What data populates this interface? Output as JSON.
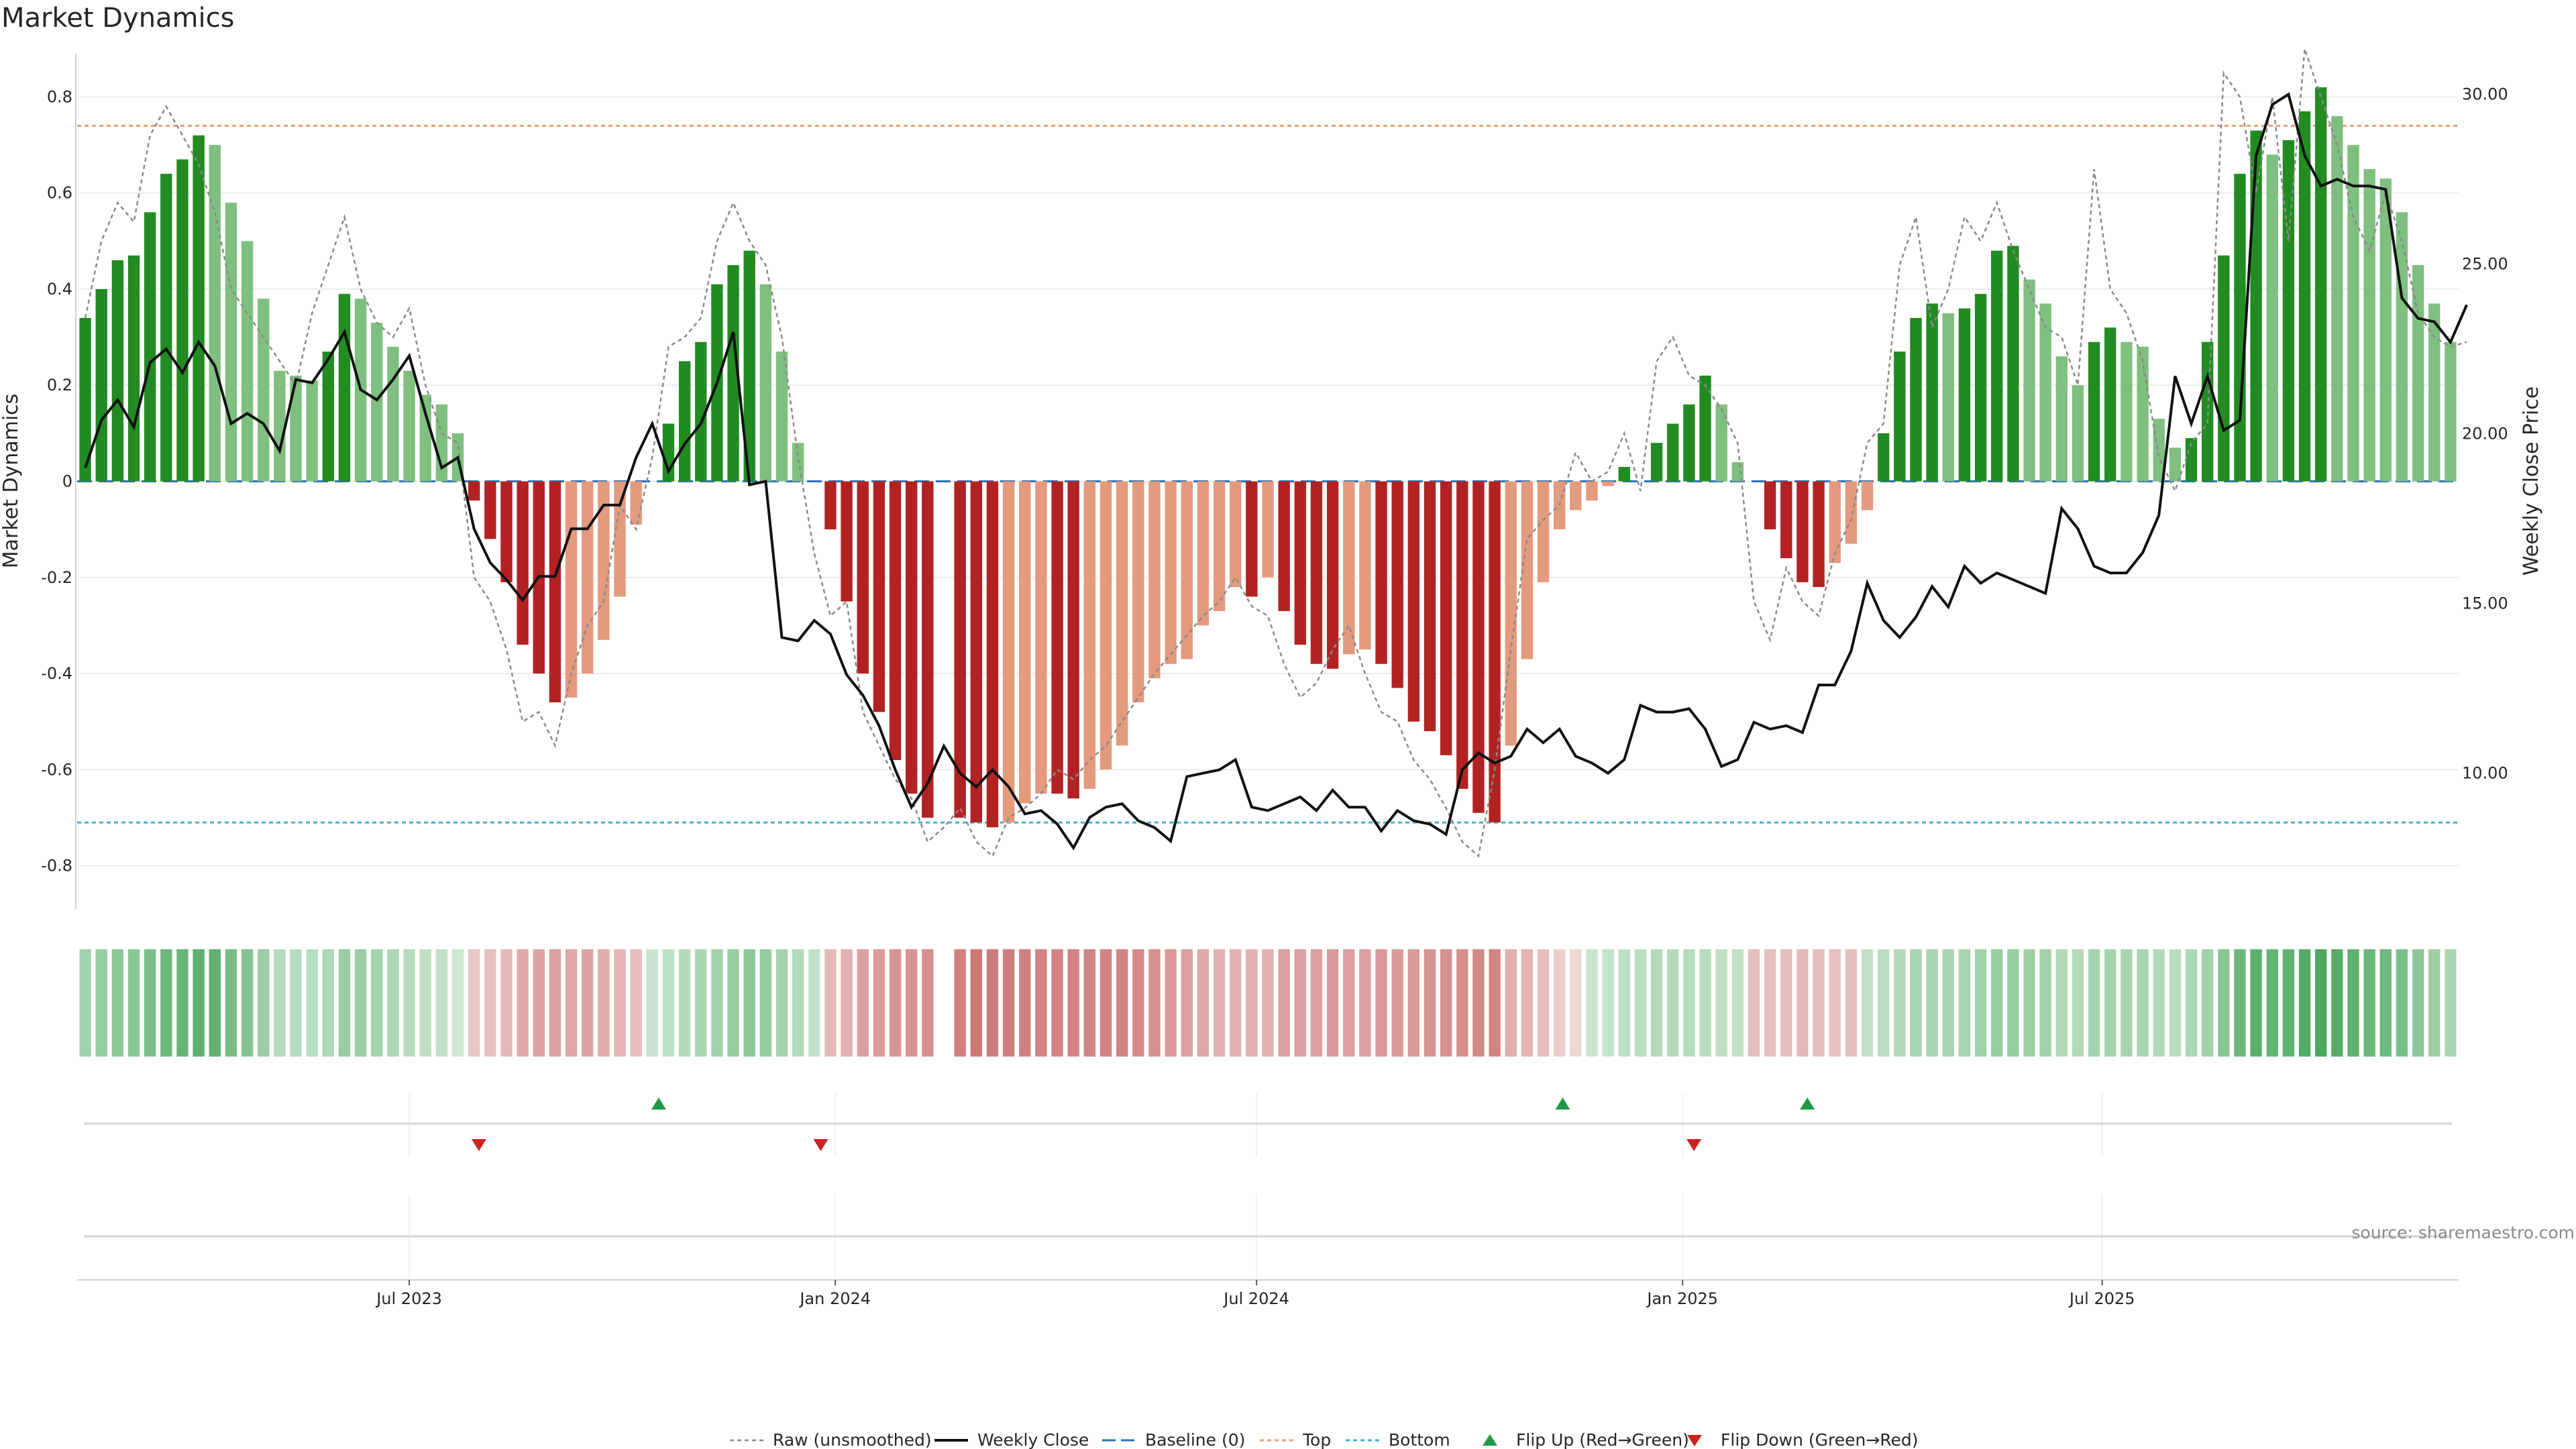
{
  "chart_data": {
    "type": "bar",
    "title": "Market Dynamics",
    "ylabel": "Market Dynamics",
    "y2label": "Weekly Close Price",
    "ylim": [
      -0.89,
      0.89
    ],
    "y2lim": [
      6.0,
      31.2
    ],
    "yticks": [
      {
        "v": 0.8,
        "label": "0.8"
      },
      {
        "v": 0.6,
        "label": "0.6"
      },
      {
        "v": 0.4,
        "label": "0.4"
      },
      {
        "v": 0.2,
        "label": "0.2"
      },
      {
        "v": 0,
        "label": "0"
      },
      {
        "v": -0.2,
        "label": "-0.2"
      },
      {
        "v": -0.4,
        "label": "-0.4"
      },
      {
        "v": -0.6,
        "label": "-0.6"
      },
      {
        "v": -0.8,
        "label": "-0.8"
      }
    ],
    "y2ticks": [
      {
        "v": 30,
        "label": "30.00"
      },
      {
        "v": 25,
        "label": "25.00"
      },
      {
        "v": 20,
        "label": "20.00"
      },
      {
        "v": 15,
        "label": "15.00"
      },
      {
        "v": 10,
        "label": "10.00"
      }
    ],
    "xticks": [
      {
        "week": 20,
        "label": "Jul 2023"
      },
      {
        "week": 46.3,
        "label": "Jan 2024"
      },
      {
        "week": 72.3,
        "label": "Jul 2024"
      },
      {
        "week": 98.6,
        "label": "Jan 2025"
      },
      {
        "week": 124.5,
        "label": "Jul 2025"
      }
    ],
    "top_level": 0.74,
    "bottom_level": -0.71,
    "baseline": 0,
    "smoothed": [
      0.34,
      0.4,
      0.46,
      0.47,
      0.56,
      0.64,
      0.67,
      0.72,
      0.7,
      0.58,
      0.5,
      0.38,
      0.23,
      0.22,
      0.21,
      0.27,
      0.39,
      0.38,
      0.33,
      0.28,
      0.23,
      0.18,
      0.16,
      0.1,
      -0.04,
      -0.12,
      -0.21,
      -0.34,
      -0.4,
      -0.46,
      -0.45,
      -0.4,
      -0.33,
      -0.24,
      -0.09,
      0,
      0.12,
      0.25,
      0.29,
      0.41,
      0.45,
      0.48,
      0.41,
      0.27,
      0.08,
      0,
      -0.1,
      -0.25,
      -0.4,
      -0.48,
      -0.58,
      -0.65,
      -0.7,
      0,
      -0.7,
      -0.71,
      -0.72,
      -0.71,
      -0.67,
      -0.65,
      -0.65,
      -0.66,
      -0.64,
      -0.6,
      -0.55,
      -0.46,
      -0.41,
      -0.38,
      -0.37,
      -0.3,
      -0.27,
      -0.22,
      -0.24,
      -0.2,
      -0.27,
      -0.34,
      -0.38,
      -0.39,
      -0.36,
      -0.35,
      -0.38,
      -0.43,
      -0.5,
      -0.52,
      -0.57,
      -0.64,
      -0.69,
      -0.71,
      -0.55,
      -0.37,
      -0.21,
      -0.1,
      -0.06,
      -0.04,
      -0.01,
      0.03,
      0,
      0.08,
      0.12,
      0.16,
      0.22,
      0.16,
      0.04,
      0,
      -0.1,
      -0.16,
      -0.21,
      -0.22,
      -0.17,
      -0.13,
      -0.06,
      0.1,
      0.27,
      0.34,
      0.37,
      0.35,
      0.36,
      0.39,
      0.48,
      0.49,
      0.42,
      0.37,
      0.26,
      0.2,
      0.29,
      0.32,
      0.29,
      0.28,
      0.13,
      0.07,
      0.09,
      0.29,
      0.47,
      0.64,
      0.73,
      0.68,
      0.71,
      0.77,
      0.82,
      0.76,
      0.7,
      0.65,
      0.63,
      0.56,
      0.45,
      0.37,
      0.29
    ],
    "raw": [
      0.34,
      0.5,
      0.58,
      0.54,
      0.72,
      0.78,
      0.72,
      0.66,
      0.56,
      0.4,
      0.35,
      0.3,
      0.25,
      0.2,
      0.35,
      0.45,
      0.55,
      0.4,
      0.33,
      0.3,
      0.36,
      0.2,
      0.1,
      0.08,
      -0.2,
      -0.25,
      -0.35,
      -0.5,
      -0.48,
      -0.55,
      -0.4,
      -0.3,
      -0.25,
      -0.05,
      -0.1,
      0.05,
      0.28,
      0.3,
      0.34,
      0.5,
      0.58,
      0.5,
      0.45,
      0.3,
      0.05,
      -0.15,
      -0.28,
      -0.25,
      -0.48,
      -0.55,
      -0.62,
      -0.66,
      -0.75,
      -0.72,
      -0.68,
      -0.75,
      -0.78,
      -0.7,
      -0.68,
      -0.65,
      -0.6,
      -0.62,
      -0.58,
      -0.55,
      -0.5,
      -0.45,
      -0.4,
      -0.36,
      -0.32,
      -0.28,
      -0.25,
      -0.2,
      -0.26,
      -0.28,
      -0.38,
      -0.45,
      -0.42,
      -0.35,
      -0.3,
      -0.4,
      -0.48,
      -0.5,
      -0.58,
      -0.62,
      -0.68,
      -0.75,
      -0.78,
      -0.6,
      -0.35,
      -0.12,
      -0.08,
      -0.05,
      0.06,
      0.0,
      0.02,
      0.1,
      -0.02,
      0.25,
      0.3,
      0.22,
      0.2,
      0.15,
      0.08,
      -0.25,
      -0.33,
      -0.18,
      -0.25,
      -0.28,
      -0.15,
      -0.08,
      0.08,
      0.12,
      0.45,
      0.55,
      0.32,
      0.4,
      0.55,
      0.5,
      0.58,
      0.48,
      0.4,
      0.32,
      0.3,
      0.2,
      0.65,
      0.4,
      0.35,
      0.25,
      0.05,
      -0.02,
      0.08,
      0.12,
      0.85,
      0.8,
      0.6,
      0.8,
      0.5,
      0.9,
      0.8,
      0.7,
      0.55,
      0.48,
      0.6,
      0.5,
      0.35,
      0.3,
      0.28,
      0.29
    ],
    "weekly_close": [
      19.0,
      20.4,
      21.0,
      20.2,
      22.1,
      22.5,
      21.8,
      22.7,
      22.0,
      20.3,
      20.6,
      20.3,
      19.5,
      21.6,
      21.5,
      22.2,
      23.0,
      21.3,
      21.0,
      21.6,
      22.3,
      20.6,
      19.0,
      19.3,
      17.2,
      16.2,
      15.7,
      15.1,
      15.8,
      15.8,
      17.2,
      17.2,
      17.9,
      17.9,
      19.3,
      20.3,
      18.9,
      19.7,
      20.3,
      21.5,
      23.0,
      18.5,
      18.6,
      14.0,
      13.9,
      14.5,
      14.1,
      12.9,
      12.3,
      11.4,
      10.1,
      9.0,
      9.7,
      10.8,
      10.0,
      9.6,
      10.1,
      9.6,
      8.8,
      8.9,
      8.5,
      7.8,
      8.7,
      9.0,
      9.1,
      8.6,
      8.4,
      8.0,
      9.9,
      10.0,
      10.1,
      10.4,
      9.0,
      8.9,
      9.1,
      9.3,
      8.9,
      9.5,
      9.0,
      9.0,
      8.3,
      8.9,
      8.6,
      8.5,
      8.2,
      10.1,
      10.6,
      10.3,
      10.5,
      11.3,
      10.9,
      11.3,
      10.5,
      10.3,
      10.0,
      10.4,
      12.0,
      11.8,
      11.8,
      11.9,
      11.3,
      10.2,
      10.4,
      11.5,
      11.3,
      11.4,
      11.2,
      12.6,
      12.6,
      13.6,
      15.6,
      14.5,
      14.0,
      14.6,
      15.5,
      14.9,
      16.1,
      15.6,
      15.9,
      15.7,
      15.5,
      15.3,
      17.8,
      17.2,
      16.1,
      15.9,
      15.9,
      16.5,
      17.6,
      21.7,
      20.3,
      21.7,
      20.1,
      20.4,
      28.2,
      29.7,
      30.0,
      28.2,
      27.3,
      27.5,
      27.3,
      27.3,
      27.2,
      24.0,
      23.4,
      23.3,
      22.7,
      23.8
    ],
    "gap_weeks": [
      53
    ],
    "heat_strip": [
      0.34,
      0.4,
      0.46,
      0.47,
      0.56,
      0.64,
      0.67,
      0.72,
      0.7,
      0.58,
      0.5,
      0.38,
      0.23,
      0.22,
      0.21,
      0.27,
      0.39,
      0.38,
      0.33,
      0.28,
      0.23,
      0.18,
      0.16,
      0.1,
      -0.17,
      -0.21,
      -0.25,
      -0.34,
      -0.38,
      -0.4,
      -0.36,
      -0.38,
      -0.33,
      -0.28,
      -0.22,
      0.12,
      0.18,
      0.25,
      0.29,
      0.34,
      0.4,
      0.46,
      0.41,
      0.33,
      0.25,
      0.15,
      -0.25,
      -0.3,
      -0.4,
      -0.42,
      -0.48,
      -0.48,
      -0.5,
      0,
      -0.6,
      -0.65,
      -0.63,
      -0.62,
      -0.6,
      -0.58,
      -0.58,
      -0.58,
      -0.58,
      -0.58,
      -0.58,
      -0.54,
      -0.5,
      -0.44,
      -0.4,
      -0.36,
      -0.3,
      -0.3,
      -0.3,
      -0.3,
      -0.4,
      -0.4,
      -0.4,
      -0.44,
      -0.4,
      -0.4,
      -0.44,
      -0.44,
      -0.44,
      -0.48,
      -0.5,
      -0.52,
      -0.55,
      -0.58,
      -0.32,
      -0.28,
      -0.22,
      -0.12,
      -0.08,
      0.12,
      0.14,
      0.18,
      0.2,
      0.24,
      0.24,
      0.22,
      0.22,
      0.18,
      0.16,
      -0.22,
      -0.22,
      -0.22,
      -0.25,
      -0.22,
      -0.2,
      -0.22,
      0.16,
      0.2,
      0.25,
      0.3,
      0.3,
      0.3,
      0.32,
      0.34,
      0.4,
      0.4,
      0.36,
      0.34,
      0.26,
      0.25,
      0.32,
      0.32,
      0.32,
      0.3,
      0.25,
      0.2,
      0.28,
      0.34,
      0.47,
      0.64,
      0.73,
      0.68,
      0.71,
      0.77,
      0.82,
      0.76,
      0.7,
      0.65,
      0.63,
      0.56,
      0.45,
      0.37,
      0.29
    ],
    "flips": [
      {
        "week": 24.3,
        "dir": "down"
      },
      {
        "week": 35.4,
        "dir": "up"
      },
      {
        "week": 45.4,
        "dir": "down"
      },
      {
        "week": 91.2,
        "dir": "up"
      },
      {
        "week": 99.3,
        "dir": "down"
      },
      {
        "week": 106.3,
        "dir": "up"
      }
    ],
    "legend": [
      {
        "key": "raw",
        "label": "Raw (unsmoothed)"
      },
      {
        "key": "close",
        "label": "Weekly Close"
      },
      {
        "key": "baseline",
        "label": "Baseline (0)"
      },
      {
        "key": "top",
        "label": "Top"
      },
      {
        "key": "bottom",
        "label": "Bottom"
      },
      {
        "key": "flip_up",
        "label": "Flip Up (Red→Green)"
      },
      {
        "key": "flip_down",
        "label": "Flip Down (Green→Red)"
      }
    ],
    "source": "source: sharemaestro.com",
    "colors": {
      "green_strong": "#228b22",
      "green_light": "#7fbf7f",
      "red_strong": "#b22222",
      "red_light": "#e39a7d",
      "close_line": "#111111",
      "raw_line": "#8a8a8a",
      "baseline": "#2e6fb5",
      "top": "#e3a27a",
      "bottom": "#3fb1d6",
      "flip_up": "#1e9a44",
      "flip_down": "#cc2222"
    }
  }
}
